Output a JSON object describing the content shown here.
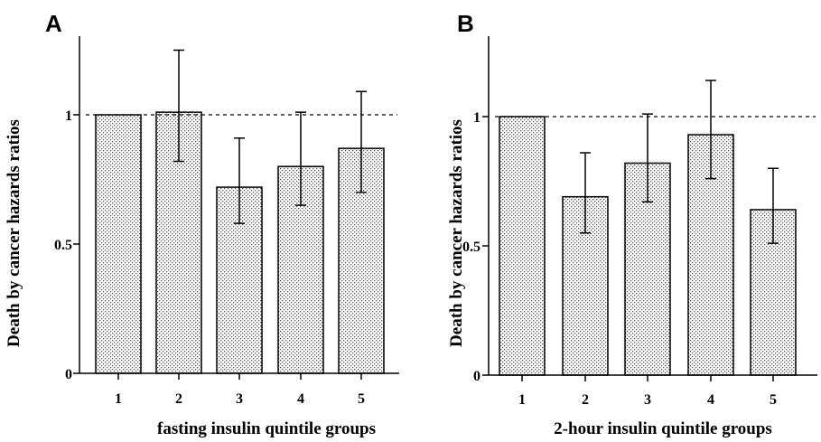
{
  "chart_data": [
    {
      "type": "bar",
      "panel_label": "A",
      "categories": [
        "1",
        "2",
        "3",
        "4",
        "5"
      ],
      "values": [
        1.0,
        1.01,
        0.72,
        0.8,
        0.87
      ],
      "error_low": [
        1.0,
        0.82,
        0.58,
        0.65,
        0.7
      ],
      "error_high": [
        1.0,
        1.25,
        0.91,
        1.01,
        1.09
      ],
      "reference_line": 1,
      "xlabel": "fasting insulin quintile groups",
      "ylabel": "Death by cancer hazards ratios",
      "yticks": [
        "0",
        "0.5",
        "1"
      ],
      "ylim": [
        0,
        1.3
      ],
      "grid": false
    },
    {
      "type": "bar",
      "panel_label": "B",
      "categories": [
        "1",
        "2",
        "3",
        "4",
        "5"
      ],
      "values": [
        1.0,
        0.69,
        0.82,
        0.93,
        0.64
      ],
      "error_low": [
        1.0,
        0.55,
        0.67,
        0.76,
        0.51
      ],
      "error_high": [
        1.0,
        0.86,
        1.01,
        1.14,
        0.8
      ],
      "reference_line": 1,
      "xlabel": "2-hour insulin quintile groups",
      "ylabel": "Death by cancer hazards ratios",
      "yticks": [
        "0",
        "0.5",
        "1"
      ],
      "ylim": [
        0,
        1.3
      ],
      "grid": false
    }
  ]
}
